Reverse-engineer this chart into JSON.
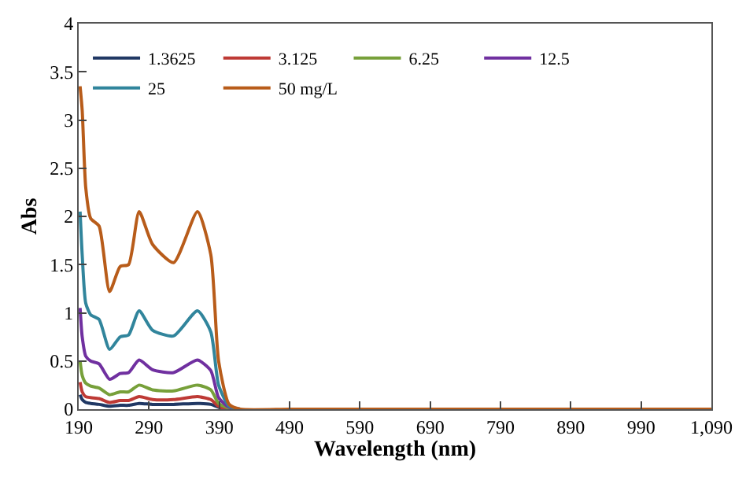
{
  "chart_data": {
    "type": "line",
    "xlabel": "Wavelength (nm)",
    "ylabel": "Abs",
    "x": [
      192,
      195,
      200,
      207,
      219,
      234,
      249,
      261,
      276,
      295,
      325,
      359,
      378,
      389,
      404,
      420,
      490,
      600,
      800,
      1000,
      1090
    ],
    "series": [
      {
        "name": "1.3625",
        "color": "#203864",
        "values": [
          0.15,
          0.1,
          0.07,
          0.06,
          0.05,
          0.03,
          0.04,
          0.04,
          0.06,
          0.05,
          0.05,
          0.06,
          0.05,
          0.02,
          0,
          0,
          null,
          null,
          null,
          null,
          null
        ]
      },
      {
        "name": "3.125",
        "color": "#be3a35",
        "values": [
          0.28,
          0.18,
          0.13,
          0.12,
          0.11,
          0.07,
          0.09,
          0.09,
          0.13,
          0.1,
          0.1,
          0.13,
          0.1,
          0.03,
          0,
          0,
          null,
          null,
          null,
          null,
          null
        ]
      },
      {
        "name": "6.25",
        "color": "#77a03a",
        "values": [
          0.5,
          0.35,
          0.27,
          0.24,
          0.22,
          0.15,
          0.18,
          0.18,
          0.25,
          0.2,
          0.19,
          0.25,
          0.2,
          0.06,
          0.01,
          0,
          null,
          null,
          null,
          null,
          null
        ]
      },
      {
        "name": "12.5",
        "color": "#7030a0",
        "values": [
          1.05,
          0.75,
          0.55,
          0.5,
          0.47,
          0.31,
          0.37,
          0.38,
          0.51,
          0.41,
          0.38,
          0.51,
          0.4,
          0.12,
          0.02,
          0,
          null,
          null,
          null,
          null,
          null
        ]
      },
      {
        "name": "25",
        "color": "#31859c",
        "values": [
          2.05,
          1.6,
          1.1,
          0.98,
          0.93,
          0.62,
          0.75,
          0.77,
          1.02,
          0.82,
          0.76,
          1.02,
          0.8,
          0.25,
          0.03,
          0,
          null,
          null,
          null,
          null,
          null
        ]
      },
      {
        "name": "50 mg/L",
        "color": "#b85c1a",
        "values": [
          3.35,
          3.1,
          2.3,
          1.98,
          1.9,
          1.22,
          1.48,
          1.5,
          2.05,
          1.71,
          1.52,
          2.05,
          1.6,
          0.5,
          0.05,
          0,
          0,
          0,
          0,
          0,
          0
        ]
      }
    ],
    "xlim": [
      190,
      1090
    ],
    "xticks": [
      190,
      290,
      390,
      490,
      590,
      690,
      790,
      890,
      990,
      {
        "value": 1090,
        "label": "1,090"
      }
    ],
    "ylim": [
      0,
      4
    ],
    "yticks": [
      0,
      0.5,
      1,
      1.5,
      2,
      2.5,
      3,
      3.5,
      4
    ],
    "legend": "top",
    "marker": "none",
    "line_style": "solid"
  }
}
